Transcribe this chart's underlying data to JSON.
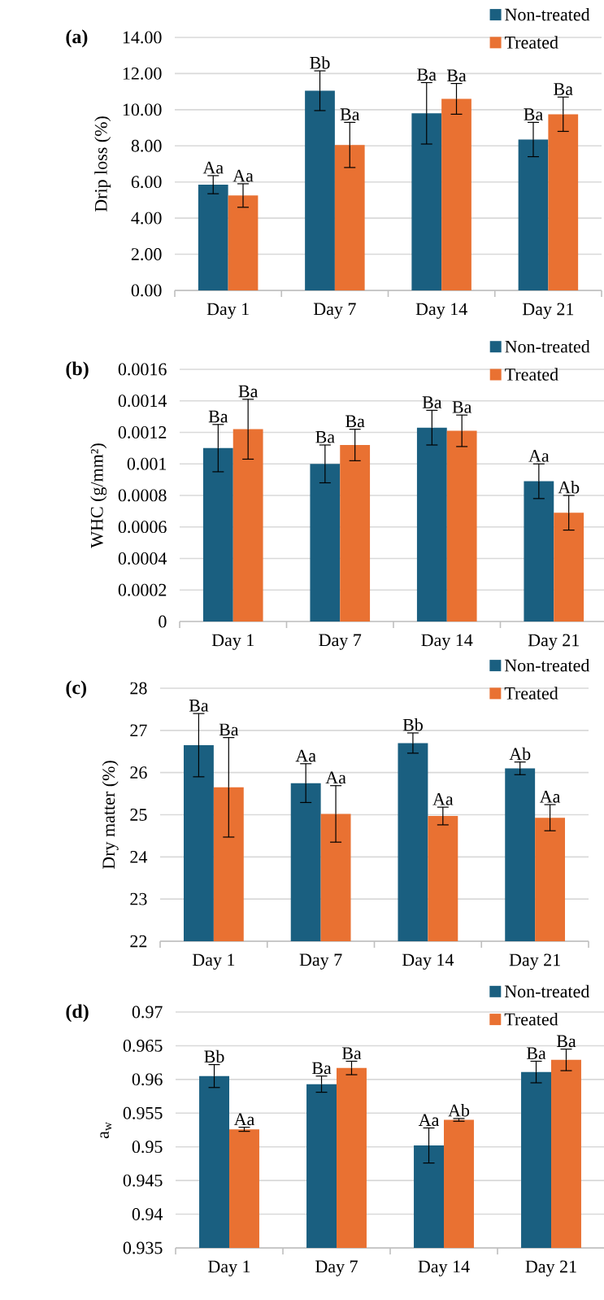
{
  "chart_data": [
    {
      "type": "bar",
      "title": "(a)",
      "ylabel": "Drip loss (%)",
      "categories": [
        "Day 1",
        "Day 7",
        "Day 14",
        "Day 21"
      ],
      "series": [
        {
          "name": "Non-treated",
          "color": "#1a5f80",
          "values": [
            5.85,
            11.05,
            9.8,
            8.35
          ],
          "errors": [
            0.5,
            1.1,
            1.7,
            0.95
          ]
        },
        {
          "name": "Treated",
          "color": "#e97132",
          "values": [
            5.25,
            8.05,
            10.6,
            9.75
          ],
          "errors": [
            0.65,
            1.25,
            0.85,
            0.95
          ]
        }
      ],
      "ylim": [
        0,
        14
      ],
      "yticks": [
        {
          "value": 0,
          "label": "0.00"
        },
        {
          "value": 2,
          "label": "2.00"
        },
        {
          "value": 4,
          "label": "4.00"
        },
        {
          "value": 6,
          "label": "6.00"
        },
        {
          "value": 8,
          "label": "8.00"
        },
        {
          "value": 10,
          "label": "10.00"
        },
        {
          "value": 12,
          "label": "12.00"
        },
        {
          "value": 14,
          "label": "14.00"
        }
      ],
      "grid": "y",
      "legend": "top right",
      "annotations": [
        "Aa",
        "Aa",
        "Bb",
        "Ba",
        "Ba",
        "Ba",
        "Ba",
        "Ba"
      ]
    },
    {
      "type": "bar",
      "title": "(b)",
      "ylabel": "WHC (g/mm²)",
      "categories": [
        "Day 1",
        "Day 7",
        "Day 14",
        "Day 21"
      ],
      "series": [
        {
          "name": "Non-treated",
          "color": "#1a5f80",
          "values": [
            0.0011,
            0.001,
            0.00123,
            0.00089
          ],
          "errors": [
            0.00015,
            0.00012,
            0.00011,
            0.00011
          ]
        },
        {
          "name": "Treated",
          "color": "#e97132",
          "values": [
            0.00122,
            0.00112,
            0.00121,
            0.00069
          ],
          "errors": [
            0.00019,
            0.0001,
            0.0001,
            0.00011
          ]
        }
      ],
      "ylim": [
        0,
        0.0016
      ],
      "yticks": [
        0,
        0.0002,
        0.0004,
        0.0006,
        0.0008,
        0.001,
        0.0012,
        0.0014,
        0.0016
      ],
      "grid": "y",
      "legend": "top right",
      "annotations": [
        "Ba",
        "Ba",
        "Ba",
        "Ba",
        "Ba",
        "Ba",
        "Aa",
        "Ab"
      ]
    },
    {
      "type": "bar",
      "title": "(c)",
      "ylabel": "Dry matter (%)",
      "categories": [
        "Day 1",
        "Day 7",
        "Day 14",
        "Day 21"
      ],
      "series": [
        {
          "name": "Non-treated",
          "color": "#1a5f80",
          "values": [
            26.65,
            25.75,
            26.7,
            26.1
          ],
          "errors": [
            0.75,
            0.46,
            0.24,
            0.15
          ]
        },
        {
          "name": "Treated",
          "color": "#e97132",
          "values": [
            25.65,
            25.02,
            24.97,
            24.93
          ],
          "errors": [
            1.18,
            0.67,
            0.21,
            0.31
          ]
        }
      ],
      "ylim": [
        22,
        28
      ],
      "yticks": [
        22,
        23,
        24,
        25,
        26,
        27,
        28
      ],
      "grid": "y",
      "legend": "top right",
      "annotations": [
        "Ba",
        "Ba",
        "Aa",
        "Aa",
        "Bb",
        "Aa",
        "Ab",
        "Aa"
      ]
    },
    {
      "type": "bar",
      "title": "(d)",
      "ylabel": "a$_{w}$",
      "categories": [
        "Day 1",
        "Day 7",
        "Day 14",
        "Day 21"
      ],
      "series": [
        {
          "name": "Non-treated",
          "color": "#1a5f80",
          "values": [
            0.9605,
            0.9593,
            0.9502,
            0.9611
          ],
          "errors": [
            0.0017,
            0.0012,
            0.0026,
            0.0016
          ]
        },
        {
          "name": "Treated",
          "color": "#e97132",
          "values": [
            0.9526,
            0.9617,
            0.954,
            0.9629
          ],
          "errors": [
            0.0003,
            0.001,
            0.0002,
            0.0016
          ]
        }
      ],
      "ylim": [
        0.935,
        0.97
      ],
      "yticks": [
        0.935,
        0.94,
        0.945,
        0.95,
        0.955,
        0.96,
        0.965,
        0.97
      ],
      "grid": "y",
      "legend": "top right",
      "annotations": [
        "Bb",
        "Aa",
        "Ba",
        "Ba",
        "Aa",
        "Ab",
        "Ba",
        "Ba"
      ]
    }
  ]
}
